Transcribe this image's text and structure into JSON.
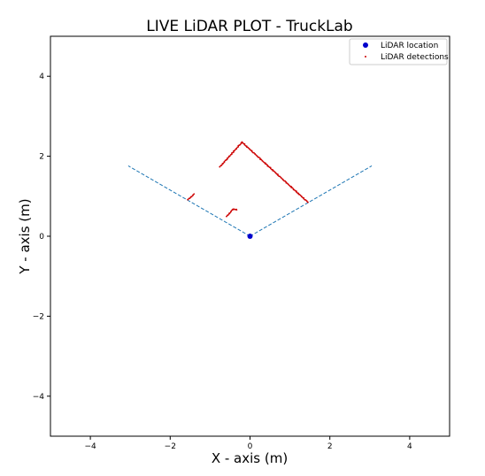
{
  "chart_data": {
    "type": "scatter",
    "title": "LIVE LiDAR PLOT - TruckLab",
    "xlabel": "X - axis (m)",
    "ylabel": "Y - axis (m)",
    "xlim": [
      -5,
      5
    ],
    "ylim": [
      -5,
      5
    ],
    "x_ticks": [
      -4,
      -2,
      0,
      2,
      4
    ],
    "y_ticks": [
      -4,
      -2,
      0,
      2,
      4
    ],
    "grid": false,
    "legend_position": "top-right",
    "legend": [
      {
        "label": "LiDAR location",
        "marker": "circle",
        "color": "#0000cc"
      },
      {
        "label": "LiDAR detections",
        "marker": "point",
        "color": "#cc0000"
      }
    ],
    "lidar_location": {
      "x": 0,
      "y": 0
    },
    "fov_lines": [
      {
        "from": [
          0,
          0
        ],
        "to": [
          -3.05,
          1.76
        ]
      },
      {
        "from": [
          0,
          0
        ],
        "to": [
          3.05,
          1.76
        ]
      }
    ],
    "detection_segments": [
      {
        "from": [
          -0.75,
          1.74
        ],
        "to": [
          -0.2,
          2.35
        ]
      },
      {
        "from": [
          -0.2,
          2.35
        ],
        "to": [
          1.45,
          0.85
        ]
      },
      {
        "from": [
          -1.55,
          0.92
        ],
        "to": [
          -1.4,
          1.05
        ]
      },
      {
        "from": [
          -0.58,
          0.5
        ],
        "to": [
          -0.42,
          0.68
        ]
      },
      {
        "from": [
          -0.42,
          0.68
        ],
        "to": [
          -0.33,
          0.66
        ]
      }
    ],
    "colors": {
      "fov_line": "#1f77b4",
      "lidar_location": "#0000cc",
      "detections": "#cc0000"
    }
  }
}
